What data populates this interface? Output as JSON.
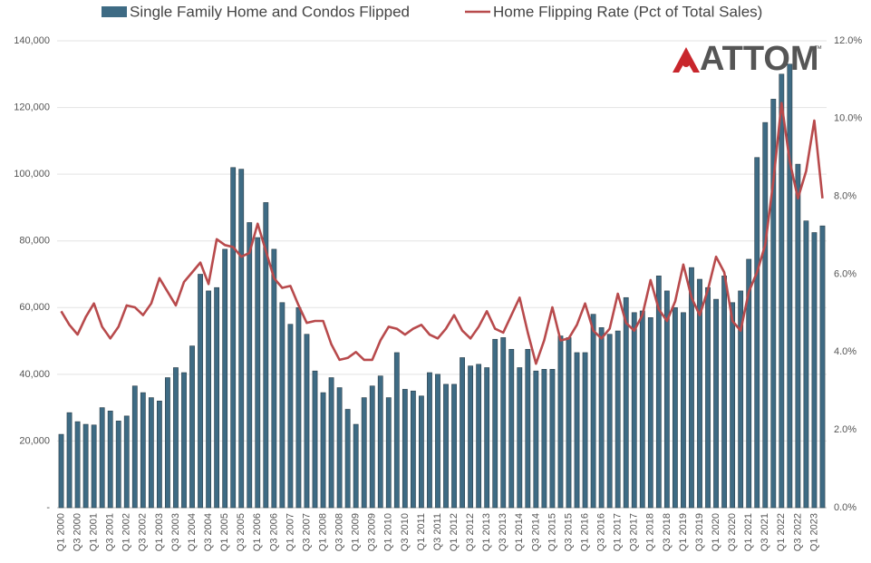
{
  "logo": "ATTOM",
  "logo_trademark": "™",
  "chart_data": {
    "type": "bar",
    "categories": [
      "Q1 2000",
      null,
      "Q3 2000",
      null,
      "Q1 2001",
      null,
      "Q3 2001",
      null,
      "Q1 2002",
      null,
      "Q3 2002",
      null,
      "Q1 2003",
      null,
      "Q3 2003",
      null,
      "Q1 2004",
      null,
      "Q3 2004",
      null,
      "Q1 2005",
      null,
      "Q3 2005",
      null,
      "Q1 2006",
      null,
      "Q3 2006",
      null,
      "Q1 2007",
      null,
      "Q3 2007",
      null,
      "Q1 2008",
      null,
      "Q3 2008",
      null,
      "Q1 2009",
      null,
      "Q3 2009",
      null,
      "Q1 2010",
      null,
      "Q3 2010",
      null,
      "Q1 2011",
      null,
      "Q3 2011",
      null,
      "Q1 2012",
      null,
      "Q3 2012",
      null,
      "Q1 2013",
      null,
      "Q3 2013",
      null,
      "Q1 2014",
      null,
      "Q3 2014",
      null,
      "Q1 2015",
      null,
      "Q3 2015",
      null,
      "Q1 2016",
      null,
      "Q3 2016",
      null,
      "Q1 2017",
      null,
      "Q3 2017",
      null,
      "Q1 2018",
      null,
      "Q3 2018",
      null,
      "Q1 2019",
      null,
      "Q3 2019",
      null,
      "Q1 2020",
      null,
      "Q3 2020",
      null,
      "Q1 2021",
      null,
      "Q3 2021",
      null,
      "Q1 2022",
      null,
      "Q3 2022",
      null,
      "Q1 2023",
      null
    ],
    "series": [
      {
        "name": "Single Family Home and Condos Flipped",
        "type": "bar",
        "color": "#3e6b84",
        "values": [
          22000,
          28500,
          25800,
          25000,
          24800,
          30000,
          29000,
          26000,
          27500,
          36500,
          34500,
          33000,
          32000,
          39000,
          42000,
          40500,
          48500,
          70000,
          65000,
          66000,
          77500,
          102000,
          101500,
          85500,
          81000,
          91500,
          77500,
          61500,
          55000,
          60000,
          52000,
          41000,
          34500,
          39000,
          36000,
          29500,
          25000,
          33000,
          36500,
          39500,
          33000,
          46500,
          35500,
          35000,
          33500,
          40500,
          40000,
          37000,
          37000,
          45000,
          42500,
          43000,
          42000,
          50500,
          51000,
          47500,
          42000,
          47500,
          41000,
          41500,
          41500,
          51500,
          51000,
          46500,
          46500,
          58000,
          54000,
          52000,
          53000,
          63000,
          58500,
          59000,
          57000,
          69500,
          65000,
          60000,
          58500,
          72000,
          68500,
          66000,
          62500,
          69500,
          61500,
          65000,
          74500,
          105000,
          115500,
          122500,
          130000,
          133000,
          103000,
          86000,
          82500,
          84500
        ]
      },
      {
        "name": "Home Flipping Rate (Pct of Total Sales)",
        "type": "line",
        "axis": "y2",
        "color": "#b84a4c",
        "values": [
          5.05,
          4.7,
          4.45,
          4.9,
          5.25,
          4.65,
          4.35,
          4.65,
          5.2,
          5.15,
          4.95,
          5.25,
          5.9,
          5.55,
          5.2,
          5.8,
          6.05,
          6.3,
          5.75,
          6.9,
          6.75,
          6.7,
          6.45,
          6.55,
          7.3,
          6.6,
          5.9,
          5.65,
          5.7,
          5.2,
          4.75,
          4.8,
          4.8,
          4.2,
          3.8,
          3.85,
          4.0,
          3.8,
          3.8,
          4.3,
          4.65,
          4.6,
          4.45,
          4.6,
          4.7,
          4.45,
          4.35,
          4.6,
          4.95,
          4.55,
          4.35,
          4.65,
          5.05,
          4.6,
          4.5,
          4.95,
          5.4,
          4.5,
          3.7,
          4.3,
          5.15,
          4.3,
          4.35,
          4.7,
          5.25,
          4.55,
          4.35,
          4.6,
          5.5,
          4.75,
          4.55,
          4.95,
          5.85,
          5.1,
          4.8,
          5.3,
          6.25,
          5.4,
          4.95,
          5.6,
          6.45,
          6.05,
          4.8,
          4.55,
          5.55,
          6.05,
          6.75,
          8.4,
          10.4,
          8.9,
          7.95,
          8.65,
          9.95,
          7.95
        ]
      }
    ],
    "ylim": [
      0,
      140000
    ],
    "yticks": [
      {
        "value": 0,
        "label": "-"
      },
      {
        "value": 20000,
        "label": "20,000"
      },
      {
        "value": 40000,
        "label": "40,000"
      },
      {
        "value": 60000,
        "label": "60,000"
      },
      {
        "value": 80000,
        "label": "80,000"
      },
      {
        "value": 100000,
        "label": "100,000"
      },
      {
        "value": 120000,
        "label": "120,000"
      },
      {
        "value": 140000,
        "label": "140,000"
      }
    ],
    "y2lim": [
      0,
      12
    ],
    "y2ticks": [
      {
        "value": 0,
        "label": "0.0%"
      },
      {
        "value": 2,
        "label": "2.0%"
      },
      {
        "value": 4,
        "label": "4.0%"
      },
      {
        "value": 6,
        "label": "6.0%"
      },
      {
        "value": 8,
        "label": "8.0%"
      },
      {
        "value": 10,
        "label": "10.0%"
      },
      {
        "value": 12,
        "label": "12.0%"
      }
    ],
    "grid": true,
    "legend": "top"
  }
}
